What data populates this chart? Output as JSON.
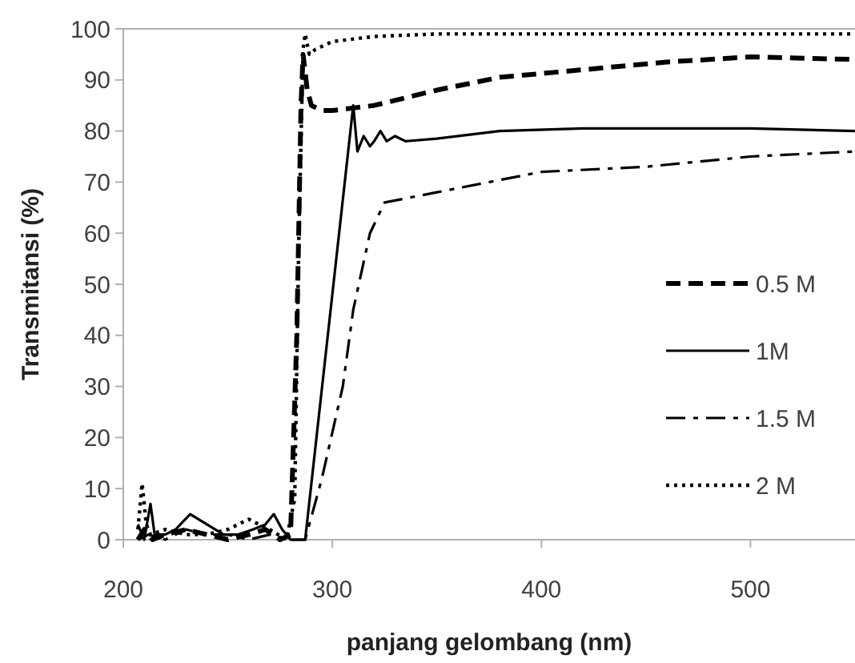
{
  "chart_data": {
    "type": "line",
    "xlabel": "panjang gelombang (nm)",
    "ylabel": "Transmitansi (%)",
    "xlim": [
      200,
      550
    ],
    "ylim": [
      0,
      100
    ],
    "xticks": [
      200,
      300,
      400,
      500
    ],
    "yticks": [
      0,
      10,
      20,
      30,
      40,
      50,
      60,
      70,
      80,
      90,
      100
    ],
    "grid": false,
    "legend": "right",
    "marker": "none",
    "series": [
      {
        "name": "0.5 M",
        "color": "#000000",
        "line_style": "dashed",
        "x": [
          207,
          210,
          214,
          220,
          230,
          240,
          250,
          260,
          268,
          275,
          280,
          283,
          285,
          286,
          288,
          290,
          295,
          300,
          310,
          320,
          330,
          350,
          380,
          420,
          460,
          500,
          550
        ],
        "values": [
          0,
          2,
          0,
          1,
          2,
          1,
          0,
          1,
          2,
          0,
          1,
          40,
          85,
          95,
          88,
          85,
          84,
          84,
          84.5,
          85,
          86,
          88,
          90.5,
          92,
          93.5,
          94.5,
          94
        ]
      },
      {
        "name": "1M",
        "color": "#000000",
        "line_style": "solid",
        "x": [
          207,
          210,
          213,
          215,
          220,
          225,
          232,
          240,
          248,
          255,
          262,
          268,
          272,
          276,
          280,
          284,
          287,
          310,
          312,
          315,
          318,
          320,
          323,
          326,
          330,
          335,
          350,
          380,
          420,
          500,
          550
        ],
        "values": [
          3,
          0,
          7,
          1,
          1,
          2,
          5,
          3,
          1,
          1,
          2,
          3,
          5,
          2,
          0,
          0,
          0,
          85,
          76,
          79,
          77,
          78,
          80,
          78,
          79,
          78,
          78.5,
          80,
          80.5,
          80.5,
          80
        ]
      },
      {
        "name": "1.5 M",
        "color": "#000000",
        "line_style": "dashdot",
        "x": [
          207,
          212,
          220,
          230,
          240,
          250,
          260,
          270,
          280,
          287,
          295,
          305,
          310,
          318,
          325,
          350,
          400,
          450,
          500,
          550
        ],
        "values": [
          0,
          1,
          0,
          2,
          1,
          1,
          0,
          1,
          0,
          0,
          12,
          30,
          45,
          60,
          66,
          68,
          72,
          73,
          75,
          76
        ]
      },
      {
        "name": "2 M",
        "color": "#000000",
        "line_style": "dotted",
        "x": [
          207,
          209,
          211,
          213,
          220,
          230,
          240,
          250,
          260,
          270,
          278,
          282,
          284,
          286,
          287,
          289,
          292,
          300,
          320,
          350,
          450,
          550
        ],
        "values": [
          2,
          11,
          3,
          1,
          2,
          1,
          1,
          2,
          4,
          2,
          0,
          8,
          60,
          96,
          99,
          95,
          96,
          97.5,
          98.5,
          99,
          99,
          99
        ]
      }
    ]
  }
}
